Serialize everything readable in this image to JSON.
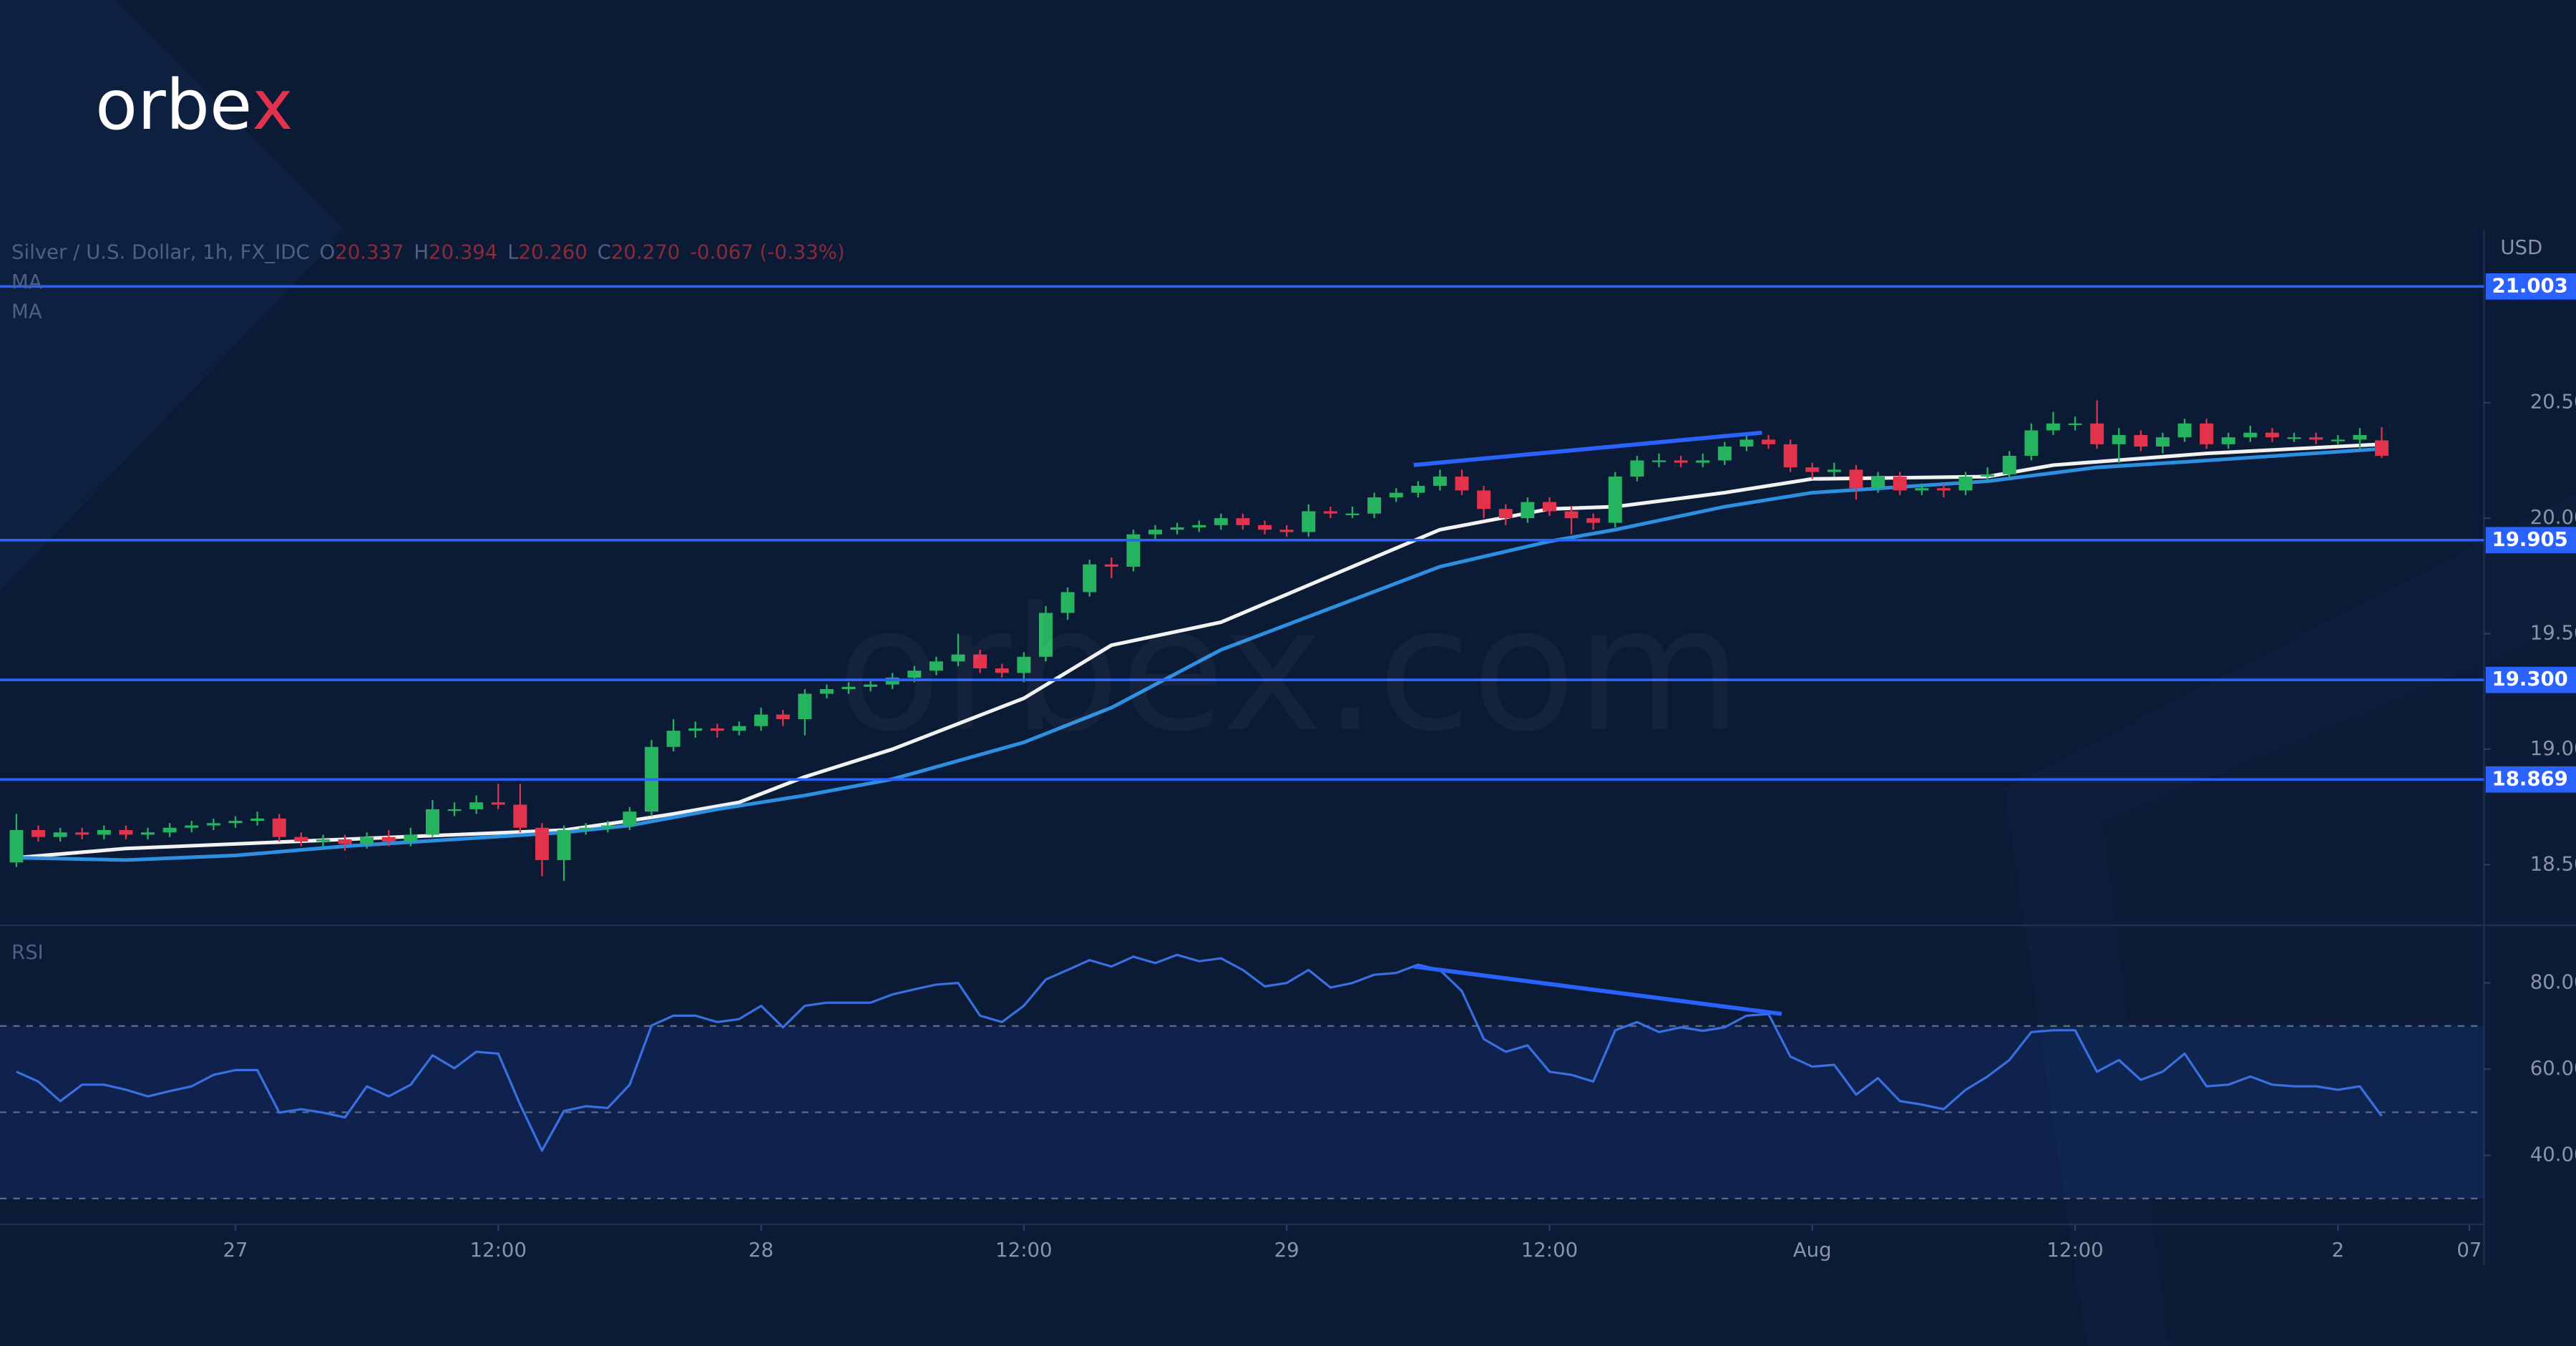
{
  "logo": {
    "text": "orbe",
    "accent": "x"
  },
  "watermark": "orbex.com",
  "chart_data": [
    {
      "type": "candlestick",
      "title": "Silver / U.S. Dollar, 1h, FX_IDC",
      "ohlc_names": [
        "O",
        "H",
        "L",
        "C"
      ],
      "last_labels": {
        "open": "20.337",
        "high": "20.394",
        "low": "20.260",
        "close": "20.270"
      },
      "change": "-0.067 (-0.33%)",
      "y_axis_label": "USD",
      "up_color": "#26b35f",
      "down_color": "#e3324b",
      "open": [
        18.51,
        18.65,
        18.62,
        18.64,
        18.63,
        18.65,
        18.63,
        18.64,
        18.66,
        18.67,
        18.68,
        18.69,
        18.7,
        18.62,
        18.6,
        18.61,
        18.59,
        18.62,
        18.6,
        18.63,
        18.74,
        18.74,
        18.77,
        18.76,
        18.66,
        18.52,
        18.65,
        18.66,
        18.67,
        18.73,
        19.01,
        19.08,
        19.09,
        19.08,
        19.1,
        19.15,
        19.13,
        19.24,
        19.26,
        19.27,
        19.28,
        19.31,
        19.34,
        19.38,
        19.41,
        19.35,
        19.33,
        19.4,
        19.59,
        19.68,
        19.8,
        19.79,
        19.93,
        19.95,
        19.96,
        19.97,
        20.0,
        19.97,
        19.95,
        19.94,
        20.03,
        20.02,
        20.02,
        20.09,
        20.11,
        20.14,
        20.18,
        20.12,
        20.04,
        20.0,
        20.07,
        20.03,
        20.0,
        19.98,
        20.18,
        20.25,
        20.25,
        20.24,
        20.25,
        20.31,
        20.34,
        20.32,
        20.22,
        20.2,
        20.21,
        20.13,
        20.18,
        20.12,
        20.13,
        20.12,
        20.18,
        20.19,
        20.27,
        20.38,
        20.41,
        20.41,
        20.32,
        20.36,
        20.31,
        20.35,
        20.41,
        20.32,
        20.35,
        20.37,
        20.35,
        20.35,
        20.34,
        20.34,
        20.337
      ],
      "high": [
        18.72,
        18.67,
        18.66,
        18.66,
        18.67,
        18.67,
        18.66,
        18.68,
        18.69,
        18.7,
        18.71,
        18.73,
        18.72,
        18.64,
        18.63,
        18.63,
        18.64,
        18.65,
        18.66,
        18.78,
        18.77,
        18.8,
        18.85,
        18.85,
        18.68,
        18.67,
        18.68,
        18.69,
        18.75,
        19.04,
        19.13,
        19.12,
        19.11,
        19.12,
        19.18,
        19.17,
        19.26,
        19.28,
        19.29,
        19.3,
        19.33,
        19.36,
        19.4,
        19.5,
        19.43,
        19.37,
        19.42,
        19.62,
        19.7,
        19.82,
        19.83,
        19.95,
        19.97,
        19.98,
        19.99,
        20.02,
        20.02,
        19.99,
        19.97,
        20.06,
        20.05,
        20.05,
        20.11,
        20.13,
        20.16,
        20.21,
        20.21,
        20.14,
        20.06,
        20.09,
        20.09,
        20.05,
        20.02,
        20.2,
        20.27,
        20.28,
        20.27,
        20.28,
        20.33,
        20.36,
        20.36,
        20.34,
        20.24,
        20.24,
        20.23,
        20.2,
        20.2,
        20.15,
        20.15,
        20.2,
        20.22,
        20.29,
        20.41,
        20.46,
        20.44,
        20.51,
        20.39,
        20.38,
        20.37,
        20.43,
        20.43,
        20.37,
        20.4,
        20.39,
        20.37,
        20.37,
        20.36,
        20.39,
        20.394
      ],
      "low": [
        18.49,
        18.6,
        18.6,
        18.61,
        18.61,
        18.61,
        18.61,
        18.62,
        18.64,
        18.65,
        18.66,
        18.67,
        18.6,
        18.58,
        18.58,
        18.56,
        18.57,
        18.58,
        18.58,
        18.62,
        18.71,
        18.72,
        18.74,
        18.64,
        18.45,
        18.43,
        18.63,
        18.64,
        18.65,
        18.71,
        18.99,
        19.05,
        19.05,
        19.06,
        19.08,
        19.1,
        19.06,
        19.22,
        19.24,
        19.25,
        19.26,
        19.29,
        19.32,
        19.36,
        19.33,
        19.31,
        19.29,
        19.38,
        19.56,
        19.66,
        19.74,
        19.77,
        19.9,
        19.93,
        19.94,
        19.95,
        19.95,
        19.93,
        19.92,
        19.92,
        20.0,
        20.0,
        20.0,
        20.07,
        20.09,
        20.12,
        20.1,
        20.0,
        19.97,
        19.98,
        20.01,
        19.93,
        19.95,
        19.96,
        20.16,
        20.22,
        20.22,
        20.22,
        20.23,
        20.29,
        20.3,
        20.2,
        20.17,
        20.18,
        20.08,
        20.11,
        20.1,
        20.1,
        20.09,
        20.1,
        20.16,
        20.17,
        20.25,
        20.36,
        20.38,
        20.3,
        20.24,
        20.29,
        20.28,
        20.33,
        20.3,
        20.3,
        20.33,
        20.33,
        20.33,
        20.32,
        20.32,
        20.3,
        20.26
      ],
      "close": [
        18.65,
        18.62,
        18.64,
        18.63,
        18.65,
        18.63,
        18.64,
        18.66,
        18.67,
        18.68,
        18.69,
        18.7,
        18.62,
        18.6,
        18.61,
        18.59,
        18.62,
        18.6,
        18.63,
        18.74,
        18.74,
        18.77,
        18.76,
        18.66,
        18.52,
        18.65,
        18.66,
        18.67,
        18.73,
        19.01,
        19.08,
        19.09,
        19.08,
        19.1,
        19.15,
        19.13,
        19.24,
        19.26,
        19.27,
        19.28,
        19.31,
        19.34,
        19.38,
        19.41,
        19.35,
        19.33,
        19.4,
        19.59,
        19.68,
        19.8,
        19.79,
        19.93,
        19.95,
        19.96,
        19.97,
        20.0,
        19.97,
        19.95,
        19.94,
        20.03,
        20.02,
        20.02,
        20.09,
        20.11,
        20.14,
        20.18,
        20.12,
        20.04,
        20.0,
        20.07,
        20.03,
        20.0,
        19.98,
        20.18,
        20.25,
        20.25,
        20.24,
        20.25,
        20.31,
        20.34,
        20.32,
        20.22,
        20.2,
        20.21,
        20.13,
        20.18,
        20.12,
        20.13,
        20.12,
        20.18,
        20.19,
        20.27,
        20.38,
        20.41,
        20.41,
        20.32,
        20.36,
        20.31,
        20.35,
        20.41,
        20.32,
        20.35,
        20.37,
        20.35,
        20.35,
        20.34,
        20.34,
        20.36,
        20.27
      ],
      "series": [
        {
          "name": "MA",
          "color": "#f2f2f2",
          "x": [
            0,
            5,
            10,
            15,
            20,
            25,
            28,
            30,
            33,
            36,
            40,
            46,
            50,
            55,
            60,
            65,
            70,
            73,
            78,
            82,
            90,
            93,
            100,
            108
          ],
          "values": [
            18.53,
            18.57,
            18.59,
            18.61,
            18.63,
            18.65,
            18.69,
            18.72,
            18.77,
            18.88,
            19.0,
            19.22,
            19.45,
            19.55,
            19.75,
            19.95,
            20.04,
            20.05,
            20.11,
            20.17,
            20.18,
            20.23,
            20.28,
            20.32
          ]
        },
        {
          "name": "MA",
          "color": "#2d8fe0",
          "x": [
            0,
            5,
            10,
            15,
            20,
            25,
            28,
            32,
            36,
            40,
            46,
            50,
            55,
            60,
            65,
            70,
            73,
            78,
            82,
            90,
            95,
            100,
            108
          ],
          "values": [
            18.53,
            18.52,
            18.54,
            18.58,
            18.61,
            18.64,
            18.67,
            18.74,
            18.8,
            18.87,
            19.03,
            19.18,
            19.43,
            19.61,
            19.79,
            19.9,
            19.95,
            20.05,
            20.11,
            20.16,
            20.22,
            20.25,
            20.3
          ]
        }
      ],
      "levels": [
        21.003,
        19.905,
        {
          "value": 19.3,
          "label": "19.300"
        },
        18.869
      ],
      "level_color": "#2962ff",
      "trendline": {
        "x": [
          63.8,
          79.7
        ],
        "y": [
          20.23,
          20.37
        ],
        "color": "#2962ff"
      },
      "xlim": [
        -0.75,
        112.67
      ],
      "ylim": [
        18.245,
        21.247
      ],
      "yticks": [
        {
          "value": 20.5,
          "label": "20.500"
        },
        {
          "value": 20,
          "label": "20.000"
        },
        {
          "value": 19.5,
          "label": "19.500"
        },
        {
          "value": 19,
          "label": "19.000"
        },
        {
          "value": 18.5,
          "label": "18.500"
        }
      ]
    },
    {
      "type": "line",
      "title": "RSI",
      "color": "#3a6fe0",
      "values": [
        59.4,
        57.1,
        52.6,
        56.4,
        56.4,
        55.2,
        53.7,
        54.9,
        56.0,
        58.7,
        59.8,
        59.8,
        49.9,
        50.7,
        49.9,
        48.8,
        56.0,
        53.7,
        56.4,
        63.2,
        60.2,
        64.0,
        63.6,
        51.8,
        41.1,
        50.3,
        51.4,
        51.0,
        56.4,
        70.1,
        72.4,
        72.4,
        70.9,
        71.6,
        74.7,
        69.7,
        74.7,
        75.4,
        75.4,
        75.4,
        77.3,
        78.5,
        79.6,
        80.0,
        72.4,
        70.9,
        74.7,
        80.8,
        83.0,
        85.3,
        83.8,
        86.1,
        84.6,
        86.5,
        85.0,
        85.7,
        83.0,
        79.2,
        80.0,
        83.0,
        78.9,
        80.0,
        81.9,
        82.3,
        84.2,
        83.0,
        78.1,
        67.0,
        64.0,
        65.5,
        59.4,
        58.7,
        57.1,
        69.0,
        70.9,
        68.6,
        69.7,
        68.9,
        69.7,
        72.4,
        72.8,
        62.9,
        60.6,
        61.0,
        54.1,
        57.9,
        52.6,
        51.8,
        50.7,
        55.2,
        58.3,
        62.1,
        68.6,
        69.0,
        69.0,
        59.4,
        62.1,
        57.5,
        59.4,
        63.6,
        56.0,
        56.4,
        58.3,
        56.4,
        56.0,
        56.0,
        55.2,
        56.0,
        49.1
      ],
      "band": [
        30,
        70
      ],
      "guides": [
        30,
        50,
        70
      ],
      "trendline": {
        "x": [
          63.8,
          80.6
        ],
        "y": [
          83.8,
          72.8
        ],
        "color": "#2962ff"
      },
      "xlim": [
        -0.75,
        112.67
      ],
      "ylim": [
        24,
        92.6
      ],
      "yticks": [
        {
          "value": 80,
          "label": "80.00"
        },
        {
          "value": 60,
          "label": "60.00"
        },
        {
          "value": 40,
          "label": "40.00"
        }
      ],
      "xticks": [
        {
          "value": 10,
          "label": "27"
        },
        {
          "value": 22,
          "label": "12:00"
        },
        {
          "value": 34,
          "label": "28"
        },
        {
          "value": 46,
          "label": "12:00"
        },
        {
          "value": 58,
          "label": "29"
        },
        {
          "value": 70,
          "label": "12:00"
        },
        {
          "value": 82,
          "label": "Aug"
        },
        {
          "value": 94,
          "label": "12:00"
        },
        {
          "value": 106,
          "label": "2"
        },
        {
          "value": 112,
          "label": "07"
        }
      ]
    }
  ]
}
